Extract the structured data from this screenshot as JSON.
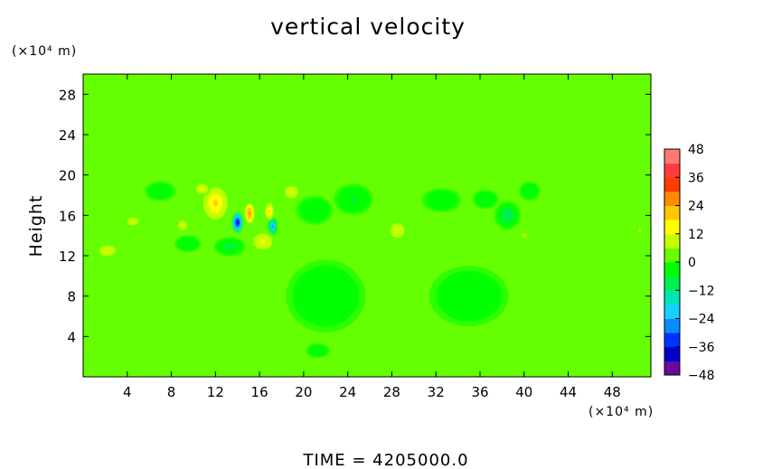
{
  "chart_data": {
    "type": "heatmap",
    "title": "vertical velocity",
    "ylabel": "Height",
    "xlabel": "",
    "x_unit": "(×10⁴ m)",
    "y_unit": "(×10⁴ m)",
    "footer": "TIME  =  4205000.0",
    "xlim": [
      0,
      51.5
    ],
    "ylim": [
      0,
      30
    ],
    "x_ticks": [
      4,
      8,
      12,
      16,
      20,
      24,
      28,
      32,
      36,
      40,
      44,
      48
    ],
    "y_ticks": [
      4,
      8,
      12,
      16,
      20,
      24,
      28
    ],
    "colorbar": {
      "min": -48,
      "max": 48,
      "ticks": [
        48,
        36,
        24,
        12,
        0,
        -12,
        -24,
        -36,
        -48
      ],
      "colors": [
        "#6a0a9c",
        "#0000c8",
        "#0032ff",
        "#0a8cff",
        "#14d2ff",
        "#00e6b4",
        "#00f050",
        "#00ff00",
        "#64ff00",
        "#c8ff00",
        "#ffff00",
        "#ffc800",
        "#ff8c00",
        "#ff3c00",
        "#ff3c3c",
        "#ff7878"
      ]
    },
    "background_value": 0,
    "features": [
      {
        "x": 14.0,
        "y": 15.3,
        "value": -42,
        "sx": 0.45,
        "sy": 0.9
      },
      {
        "x": 15.1,
        "y": 16.2,
        "value": 28,
        "sx": 0.45,
        "sy": 1.0
      },
      {
        "x": 17.2,
        "y": 14.9,
        "value": -26,
        "sx": 0.4,
        "sy": 0.8
      },
      {
        "x": 16.9,
        "y": 16.4,
        "value": 20,
        "sx": 0.4,
        "sy": 0.8
      },
      {
        "x": 12.0,
        "y": 17.2,
        "value": 18,
        "sx": 1.1,
        "sy": 1.6
      },
      {
        "x": 10.8,
        "y": 18.6,
        "value": 14,
        "sx": 0.7,
        "sy": 0.6
      },
      {
        "x": 16.3,
        "y": 13.4,
        "value": 13,
        "sx": 1.1,
        "sy": 1.0
      },
      {
        "x": 13.3,
        "y": 12.9,
        "value": -9,
        "sx": 1.2,
        "sy": 0.8
      },
      {
        "x": 18.9,
        "y": 18.3,
        "value": 10,
        "sx": 1.0,
        "sy": 1.0
      },
      {
        "x": 9.0,
        "y": 15.0,
        "value": 8,
        "sx": 1.0,
        "sy": 1.2
      },
      {
        "x": 4.5,
        "y": 15.4,
        "value": 8,
        "sx": 1.3,
        "sy": 1.0
      },
      {
        "x": 2.2,
        "y": 12.5,
        "value": 10,
        "sx": 1.2,
        "sy": 0.9
      },
      {
        "x": 6.5,
        "y": 14.4,
        "value": 5,
        "sx": 1.5,
        "sy": 1.2
      },
      {
        "x": 7.0,
        "y": 18.4,
        "value": -6,
        "sx": 1.2,
        "sy": 0.8
      },
      {
        "x": 9.5,
        "y": 13.2,
        "value": -5,
        "sx": 1.0,
        "sy": 0.7
      },
      {
        "x": 21.0,
        "y": 16.5,
        "value": -5,
        "sx": 1.4,
        "sy": 1.2
      },
      {
        "x": 24.5,
        "y": 17.6,
        "value": -7,
        "sx": 1.5,
        "sy": 1.3
      },
      {
        "x": 28.5,
        "y": 14.5,
        "value": 8,
        "sx": 1.6,
        "sy": 1.8
      },
      {
        "x": 32.5,
        "y": 17.5,
        "value": -4,
        "sx": 1.5,
        "sy": 1.0
      },
      {
        "x": 38.5,
        "y": 16.0,
        "value": -12,
        "sx": 1.0,
        "sy": 1.2
      },
      {
        "x": 36.5,
        "y": 17.6,
        "value": -6,
        "sx": 1.0,
        "sy": 0.8
      },
      {
        "x": 40.5,
        "y": 18.4,
        "value": -5,
        "sx": 0.8,
        "sy": 0.8
      },
      {
        "x": 40.0,
        "y": 14.0,
        "value": 7,
        "sx": 1.2,
        "sy": 1.0
      },
      {
        "x": 44.5,
        "y": 16.0,
        "value": 4,
        "sx": 1.5,
        "sy": 1.2
      },
      {
        "x": 50.5,
        "y": 14.5,
        "value": 6,
        "sx": 0.9,
        "sy": 1.0
      },
      {
        "x": 22.0,
        "y": 8.0,
        "value": -3,
        "sx": 3.0,
        "sy": 3.0
      },
      {
        "x": 21.3,
        "y": 2.6,
        "value": -5,
        "sx": 0.9,
        "sy": 0.6
      },
      {
        "x": 31.0,
        "y": 3.0,
        "value": 4,
        "sx": 1.2,
        "sy": 0.8
      },
      {
        "x": 7.0,
        "y": 5.0,
        "value": 3,
        "sx": 3.0,
        "sy": 2.5
      },
      {
        "x": 35.0,
        "y": 8.0,
        "value": -3,
        "sx": 3.0,
        "sy": 2.5
      }
    ]
  }
}
